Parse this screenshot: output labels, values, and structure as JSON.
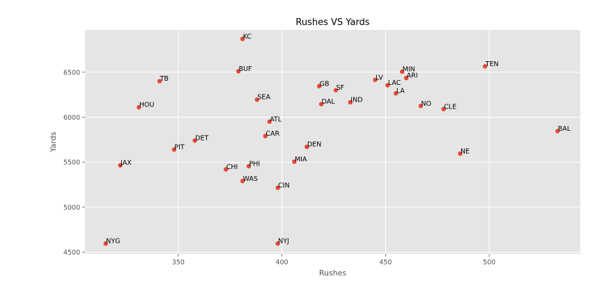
{
  "chart_data": {
    "type": "scatter",
    "title": "Rushes VS Yards",
    "xlabel": "Rushes",
    "ylabel": "Yards",
    "xlim": [
      305,
      544
    ],
    "ylim": [
      4480,
      6970
    ],
    "xticks": [
      350,
      400,
      450,
      500
    ],
    "yticks": [
      4500,
      5000,
      5500,
      6000,
      6500
    ],
    "grid": true,
    "point_color": "#E24A33",
    "background_color": "#E5E5E5",
    "points": [
      {
        "label": "KC",
        "x": 381,
        "y": 6870
      },
      {
        "label": "BUF",
        "x": 379,
        "y": 6510
      },
      {
        "label": "TB",
        "x": 341,
        "y": 6400
      },
      {
        "label": "HOU",
        "x": 331,
        "y": 6110
      },
      {
        "label": "SEA",
        "x": 388,
        "y": 6195
      },
      {
        "label": "ATL",
        "x": 394,
        "y": 5950
      },
      {
        "label": "CAR",
        "x": 392,
        "y": 5790
      },
      {
        "label": "DET",
        "x": 358,
        "y": 5740
      },
      {
        "label": "PIT",
        "x": 348,
        "y": 5640
      },
      {
        "label": "JAX",
        "x": 322,
        "y": 5465
      },
      {
        "label": "CHI",
        "x": 373,
        "y": 5420
      },
      {
        "label": "PHI",
        "x": 384,
        "y": 5455
      },
      {
        "label": "WAS",
        "x": 381,
        "y": 5290
      },
      {
        "label": "CIN",
        "x": 398,
        "y": 5215
      },
      {
        "label": "NYG",
        "x": 315,
        "y": 4595
      },
      {
        "label": "NYJ",
        "x": 398,
        "y": 4595
      },
      {
        "label": "GB",
        "x": 418,
        "y": 6345
      },
      {
        "label": "SF",
        "x": 426,
        "y": 6300
      },
      {
        "label": "DAL",
        "x": 419,
        "y": 6145
      },
      {
        "label": "IND",
        "x": 433,
        "y": 6165
      },
      {
        "label": "DEN",
        "x": 412,
        "y": 5670
      },
      {
        "label": "MIA",
        "x": 406,
        "y": 5505
      },
      {
        "label": "LV",
        "x": 445,
        "y": 6415
      },
      {
        "label": "LAC",
        "x": 451,
        "y": 6355
      },
      {
        "label": "LA",
        "x": 455,
        "y": 6265
      },
      {
        "label": "MIN",
        "x": 458,
        "y": 6505
      },
      {
        "label": "ARI",
        "x": 460,
        "y": 6435
      },
      {
        "label": "NO",
        "x": 467,
        "y": 6125
      },
      {
        "label": "CLE",
        "x": 478,
        "y": 6090
      },
      {
        "label": "NE",
        "x": 486,
        "y": 5595
      },
      {
        "label": "TEN",
        "x": 498,
        "y": 6565
      },
      {
        "label": "BAL",
        "x": 533,
        "y": 5845
      }
    ]
  }
}
